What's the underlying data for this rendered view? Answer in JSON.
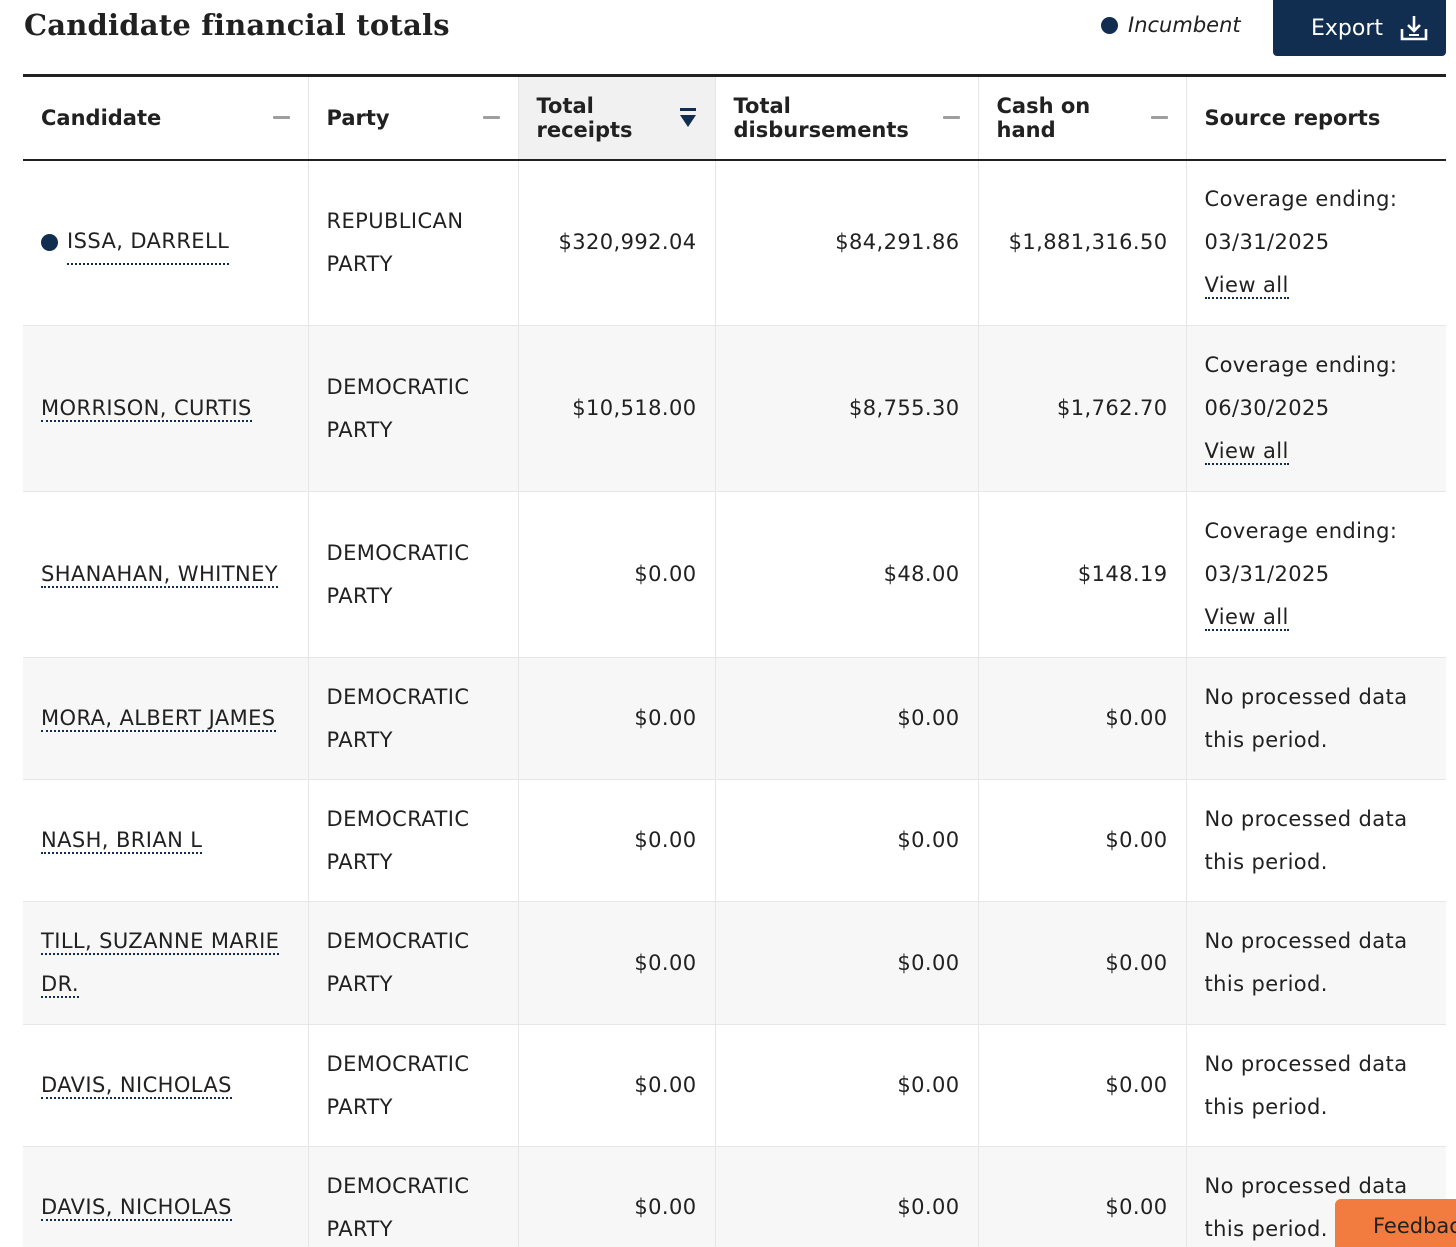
{
  "header": {
    "title": "Candidate financial totals",
    "legend_label": "Incumbent",
    "export_label": "Export"
  },
  "table": {
    "columns": [
      {
        "label": "Candidate",
        "sort": "none"
      },
      {
        "label": "Party",
        "sort": "none"
      },
      {
        "label": "Total receipts",
        "sort": "descending"
      },
      {
        "label": "Total disbursements",
        "sort": "none"
      },
      {
        "label": "Cash on hand",
        "sort": "none"
      },
      {
        "label": "Source reports"
      }
    ],
    "rows": [
      {
        "candidate": "ISSA, DARRELL",
        "incumbent": true,
        "party": "REPUBLICAN PARTY",
        "receipts": "$320,992.04",
        "disbursements": "$84,291.86",
        "cash": "$1,881,316.50",
        "source": "Coverage ending: 03/31/2025",
        "view_all": "View all"
      },
      {
        "candidate": "MORRISON, CURTIS",
        "incumbent": false,
        "party": "DEMOCRATIC PARTY",
        "receipts": "$10,518.00",
        "disbursements": "$8,755.30",
        "cash": "$1,762.70",
        "source": "Coverage ending: 06/30/2025",
        "view_all": "View all"
      },
      {
        "candidate": "SHANAHAN, WHITNEY",
        "incumbent": false,
        "party": "DEMOCRATIC PARTY",
        "receipts": "$0.00",
        "disbursements": "$48.00",
        "cash": "$148.19",
        "source": "Coverage ending: 03/31/2025",
        "view_all": "View all"
      },
      {
        "candidate": "MORA, ALBERT JAMES",
        "incumbent": false,
        "party": "DEMOCRATIC PARTY",
        "receipts": "$0.00",
        "disbursements": "$0.00",
        "cash": "$0.00",
        "source": "No processed data this period."
      },
      {
        "candidate": "NASH, BRIAN L",
        "incumbent": false,
        "party": "DEMOCRATIC PARTY",
        "receipts": "$0.00",
        "disbursements": "$0.00",
        "cash": "$0.00",
        "source": "No processed data this period."
      },
      {
        "candidate": "TILL, SUZANNE MARIE DR.",
        "incumbent": false,
        "party": "DEMOCRATIC PARTY",
        "receipts": "$0.00",
        "disbursements": "$0.00",
        "cash": "$0.00",
        "source": "No processed data this period."
      },
      {
        "candidate": "DAVIS, NICHOLAS",
        "incumbent": false,
        "party": "DEMOCRATIC PARTY",
        "receipts": "$0.00",
        "disbursements": "$0.00",
        "cash": "$0.00",
        "source": "No processed data this period."
      },
      {
        "candidate": "DAVIS, NICHOLAS",
        "incumbent": false,
        "party": "DEMOCRATIC PARTY",
        "receipts": "$0.00",
        "disbursements": "$0.00",
        "cash": "$0.00",
        "source": "No processed data this period."
      }
    ]
  },
  "feedback_label": "Feedback",
  "colors": {
    "accent": "#112e51",
    "feedback": "#f27b3f",
    "row_alt": "#f7f7f7",
    "sorted_header": "#f1f1f1"
  }
}
